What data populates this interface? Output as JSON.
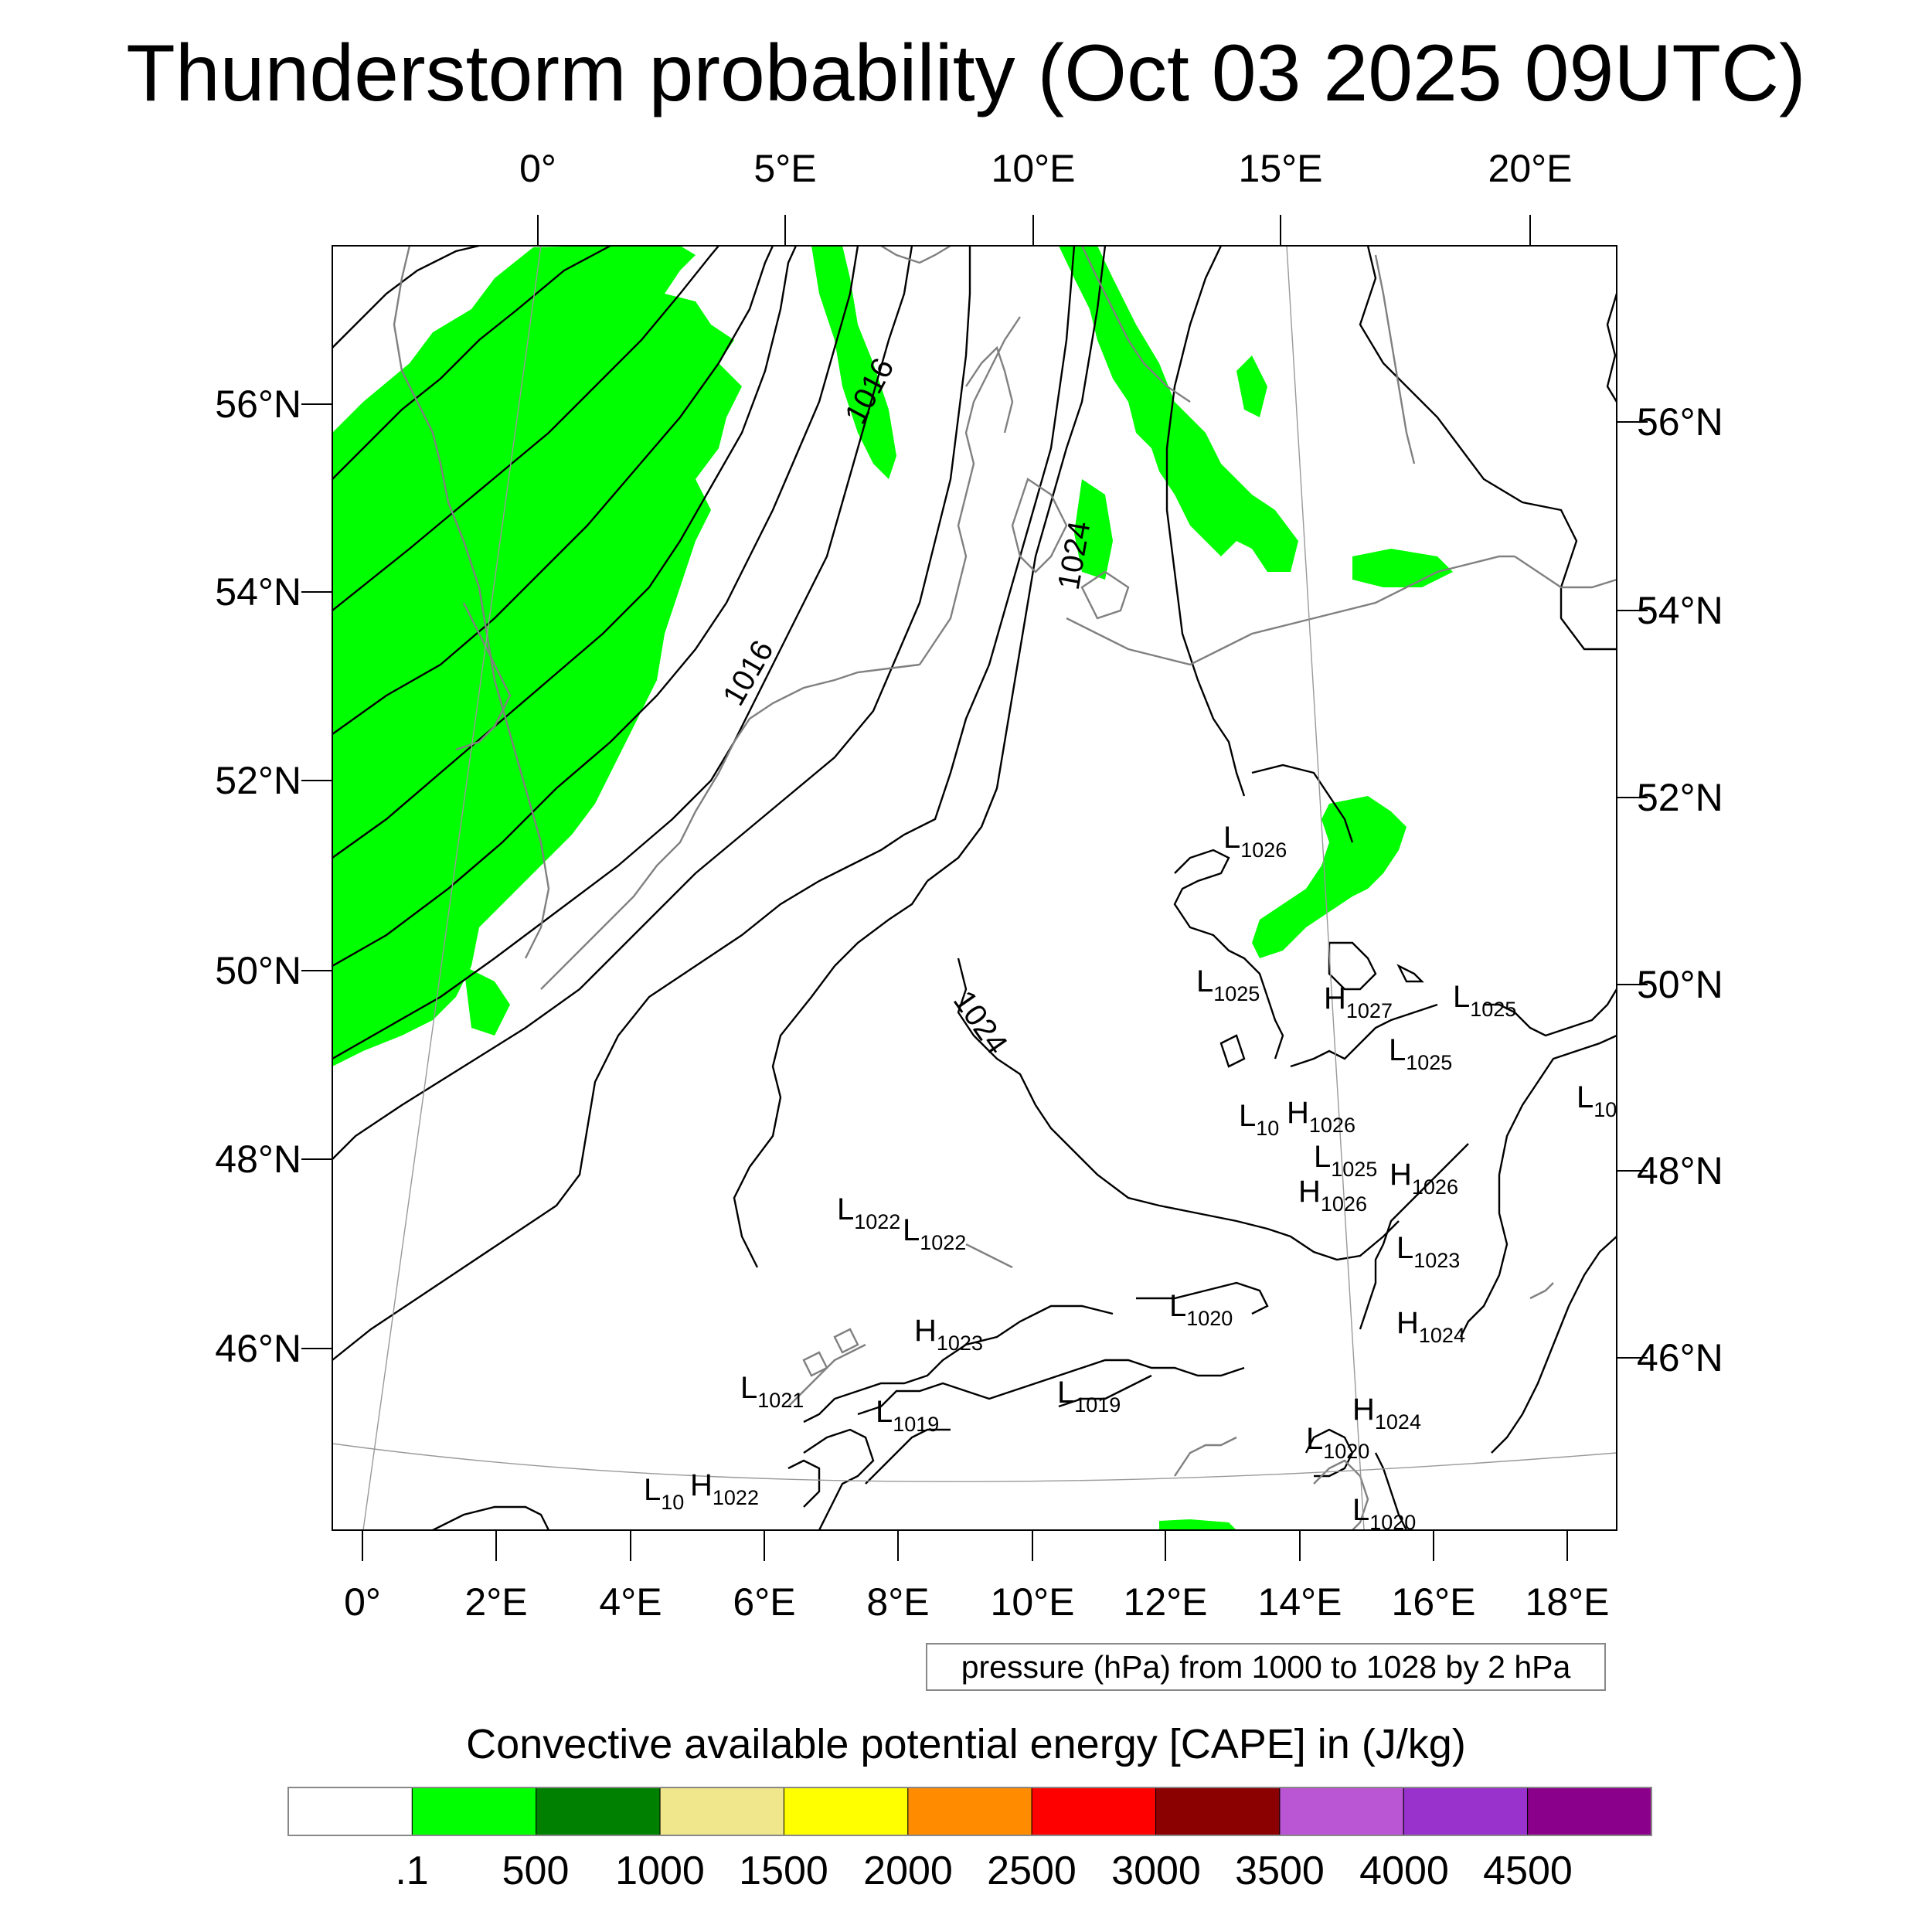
{
  "title": "Thunderstorm probability (Oct 03 2025 09UTC)",
  "map": {
    "top_lon_labels": [
      "0°",
      "5°E",
      "10°E",
      "15°E",
      "20°E"
    ],
    "bottom_lon_labels": [
      "0°",
      "2°E",
      "4°E",
      "6°E",
      "8°E",
      "10°E",
      "12°E",
      "14°E",
      "16°E",
      "18°E"
    ],
    "left_lat_labels": [
      "56°N",
      "54°N",
      "52°N",
      "50°N",
      "48°N",
      "46°N"
    ],
    "right_lat_labels": [
      "56°N",
      "54°N",
      "52°N",
      "50°N",
      "48°N",
      "46°N"
    ],
    "isobar_labels": [
      "1016",
      "1016",
      "1024",
      "1024"
    ],
    "pressure_centers": [
      {
        "type": "L",
        "value": "1026"
      },
      {
        "type": "L",
        "value": "1025"
      },
      {
        "type": "H",
        "value": "1027"
      },
      {
        "type": "L",
        "value": "1025"
      },
      {
        "type": "L",
        "value": "1025"
      },
      {
        "type": "L",
        "value": "10"
      },
      {
        "type": "L",
        "value": "10"
      },
      {
        "type": "H",
        "value": "1026"
      },
      {
        "type": "L",
        "value": "1025"
      },
      {
        "type": "H",
        "value": "1026"
      },
      {
        "type": "H",
        "value": "1026"
      },
      {
        "type": "L",
        "value": "1022"
      },
      {
        "type": "L",
        "value": "1022"
      },
      {
        "type": "L",
        "value": "1023"
      },
      {
        "type": "L",
        "value": "1020"
      },
      {
        "type": "H",
        "value": "1023"
      },
      {
        "type": "H",
        "value": "1024"
      },
      {
        "type": "L",
        "value": "1021"
      },
      {
        "type": "L",
        "value": "1019"
      },
      {
        "type": "L",
        "value": "1019"
      },
      {
        "type": "H",
        "value": "1024"
      },
      {
        "type": "L",
        "value": "1020"
      },
      {
        "type": "L",
        "value": "10"
      },
      {
        "type": "H",
        "value": "1022"
      },
      {
        "type": "L",
        "value": "1020"
      }
    ],
    "cape_fill_color": "#00ff00",
    "isobar_color": "#000000",
    "coastline_color": "#808080"
  },
  "pressure_note": "pressure (hPa) from 1000 to 1028 by 2 hPa",
  "cape": {
    "title": "Convective available potential energy [CAPE] in (J/kg)",
    "labels": [
      ".1",
      "500",
      "1000",
      "1500",
      "2000",
      "2500",
      "3000",
      "3500",
      "4000",
      "4500"
    ],
    "colors": [
      "#ffffff",
      "#00ff00",
      "#008000",
      "#f0e68c",
      "#ffff00",
      "#ff8c00",
      "#ff0000",
      "#8b0000",
      "#ba55d3",
      "#9932cc",
      "#8b008b"
    ]
  }
}
